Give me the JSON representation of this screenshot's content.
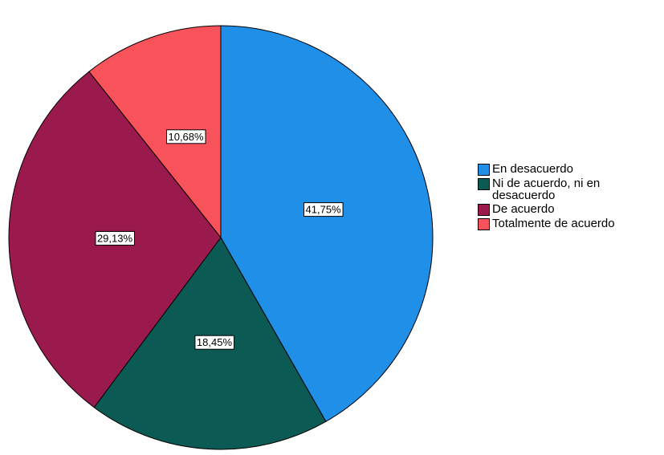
{
  "chart_data": {
    "type": "pie",
    "categories": [
      "En desacuerdo",
      "Ni de acuerdo, ni en desacuerdo",
      "De acuerdo",
      "Totalmente de acuerdo"
    ],
    "values": [
      41.75,
      18.45,
      29.13,
      10.68
    ],
    "value_labels": [
      "41,75%",
      "18,45%",
      "29,13%",
      "10,68%"
    ],
    "colors": [
      "#1f8fe8",
      "#0c5a54",
      "#9b1a4d",
      "#f8525a"
    ],
    "legend": "right"
  }
}
